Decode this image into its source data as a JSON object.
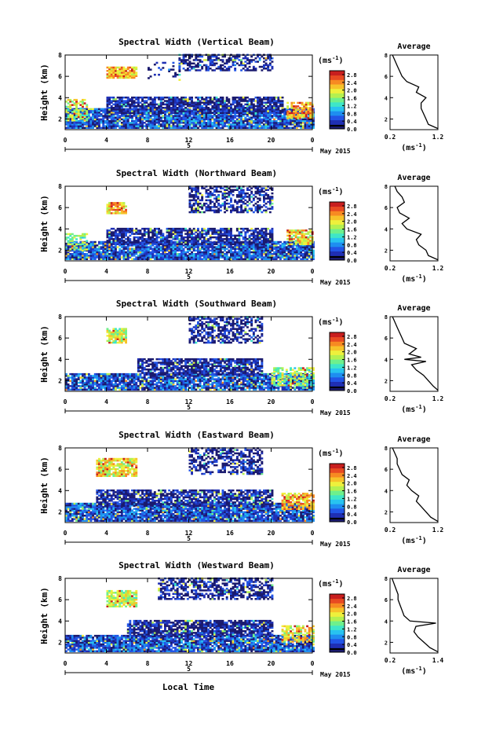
{
  "figure": {
    "month_label": "May 2015",
    "day_label": "5",
    "xlabel": "Local Time",
    "ylabel": "Height (km)",
    "unit_label": "(ms",
    "unit_exp": "-1",
    "unit_close": ")",
    "avg_title": "Average"
  },
  "colors": {
    "scale": [
      "#1a1a6e",
      "#1f2fb4",
      "#2255e6",
      "#1e8ef0",
      "#28c3f0",
      "#3ee6c8",
      "#6ef08c",
      "#b4f050",
      "#eef03c",
      "#f7c22a",
      "#f78a22",
      "#e84a22",
      "#c81e1e"
    ],
    "missing": "#ffffff"
  },
  "chart_data": [
    {
      "type": "heatmap",
      "title": "Spectral Width (Vertical Beam)",
      "x_ticks": [
        "0",
        "4",
        "8",
        "12",
        "16",
        "20",
        "0"
      ],
      "xlim": [
        0,
        24
      ],
      "y_ticks": [
        "2",
        "4",
        "6",
        "8"
      ],
      "ylim": [
        1,
        8
      ],
      "colorbar_ticks": [
        "0.0",
        "0.4",
        "0.8",
        "1.2",
        "1.6",
        "2.0",
        "2.4",
        "2.8"
      ],
      "colorbar_range": [
        0,
        3.0
      ],
      "regions": [
        {
          "t0": 0,
          "t1": 24,
          "h0": 1.1,
          "h1": 2.9,
          "value": 0.5,
          "density": 0.92
        },
        {
          "t0": 4,
          "t1": 21,
          "h0": 2.5,
          "h1": 4.0,
          "value": 0.2,
          "density": 0.82
        },
        {
          "t0": 4,
          "t1": 7,
          "h0": 5.8,
          "h1": 6.9,
          "value": 2.2,
          "density": 0.9
        },
        {
          "t0": 11,
          "t1": 20,
          "h0": 6.5,
          "h1": 8.0,
          "value": 0.2,
          "density": 0.55
        },
        {
          "t0": 8,
          "t1": 11,
          "h0": 5.6,
          "h1": 7.3,
          "value": 0.2,
          "density": 0.18
        },
        {
          "t0": 21.5,
          "t1": 24,
          "h0": 2.0,
          "h1": 3.6,
          "value": 2.2,
          "density": 0.8
        },
        {
          "t0": 0,
          "t1": 2,
          "h0": 1.8,
          "h1": 3.8,
          "value": 1.8,
          "density": 0.6
        }
      ],
      "avg_profile": {
        "xticks": [
          "0.2",
          "1.2"
        ],
        "xlim": [
          0.2,
          1.2
        ],
        "yticks": [
          "2",
          "4",
          "6",
          "8"
        ],
        "ylim": [
          1,
          8
        ],
        "h": [
          1.1,
          1.5,
          2.0,
          2.5,
          3.0,
          3.5,
          4.0,
          4.5,
          5.0,
          5.5,
          6.0,
          6.5,
          7.0,
          7.5,
          8.0
        ],
        "w": [
          1.2,
          1.0,
          0.95,
          0.9,
          0.85,
          0.85,
          0.95,
          0.75,
          0.8,
          0.55,
          0.45,
          0.4,
          0.35,
          0.3,
          0.25
        ]
      }
    },
    {
      "type": "heatmap",
      "title": "Spectral Width (Northward Beam)",
      "x_ticks": [
        "0",
        "4",
        "8",
        "12",
        "16",
        "20",
        "0"
      ],
      "xlim": [
        0,
        24
      ],
      "y_ticks": [
        "2",
        "4",
        "6",
        "8"
      ],
      "ylim": [
        1,
        8
      ],
      "colorbar_ticks": [
        "0.0",
        "0.4",
        "0.8",
        "1.2",
        "1.6",
        "2.0",
        "2.4",
        "2.8"
      ],
      "colorbar_range": [
        0,
        3.0
      ],
      "regions": [
        {
          "t0": 0,
          "t1": 24,
          "h0": 1.1,
          "h1": 2.8,
          "value": 0.5,
          "density": 0.9
        },
        {
          "t0": 4,
          "t1": 20,
          "h0": 2.5,
          "h1": 4.0,
          "value": 0.2,
          "density": 0.78
        },
        {
          "t0": 4,
          "t1": 6,
          "h0": 5.4,
          "h1": 6.5,
          "value": 2.2,
          "density": 0.85
        },
        {
          "t0": 12,
          "t1": 20,
          "h0": 5.5,
          "h1": 8.0,
          "value": 0.2,
          "density": 0.55
        },
        {
          "t0": 21.5,
          "t1": 24,
          "h0": 2.5,
          "h1": 3.8,
          "value": 2.0,
          "density": 0.7
        },
        {
          "t0": 0,
          "t1": 2,
          "h0": 2.0,
          "h1": 3.5,
          "value": 1.6,
          "density": 0.5
        }
      ],
      "avg_profile": {
        "xticks": [
          "0.2",
          "1.2"
        ],
        "xlim": [
          0.2,
          1.2
        ],
        "yticks": [
          "2",
          "4",
          "6",
          "8"
        ],
        "ylim": [
          1,
          8
        ],
        "h": [
          1.1,
          1.5,
          2.0,
          2.5,
          3.0,
          3.5,
          4.0,
          4.5,
          5.0,
          5.5,
          6.0,
          6.5,
          7.0,
          7.5,
          8.0
        ],
        "w": [
          1.2,
          1.0,
          0.95,
          0.8,
          0.75,
          0.85,
          0.55,
          0.45,
          0.6,
          0.4,
          0.35,
          0.5,
          0.45,
          0.35,
          0.3
        ]
      }
    },
    {
      "type": "heatmap",
      "title": "Spectral Width (Southward Beam)",
      "x_ticks": [
        "0",
        "4",
        "8",
        "12",
        "16",
        "20",
        "0"
      ],
      "xlim": [
        0,
        24
      ],
      "y_ticks": [
        "2",
        "4",
        "6",
        "8"
      ],
      "ylim": [
        1,
        8
      ],
      "colorbar_ticks": [
        "0.0",
        "0.4",
        "0.8",
        "1.2",
        "1.6",
        "2.0",
        "2.4",
        "2.8"
      ],
      "colorbar_range": [
        0,
        3.0
      ],
      "regions": [
        {
          "t0": 0,
          "t1": 24,
          "h0": 1.1,
          "h1": 2.6,
          "value": 0.5,
          "density": 0.88
        },
        {
          "t0": 7,
          "t1": 19,
          "h0": 2.5,
          "h1": 4.0,
          "value": 0.2,
          "density": 0.8
        },
        {
          "t0": 4,
          "t1": 6,
          "h0": 5.5,
          "h1": 6.8,
          "value": 1.8,
          "density": 0.85
        },
        {
          "t0": 12,
          "t1": 19,
          "h0": 5.5,
          "h1": 8.0,
          "value": 0.2,
          "density": 0.55
        },
        {
          "t0": 20,
          "t1": 24,
          "h0": 1.5,
          "h1": 3.2,
          "value": 1.6,
          "density": 0.65
        }
      ],
      "avg_profile": {
        "xticks": [
          "0.2",
          "1.2"
        ],
        "xlim": [
          0.2,
          1.2
        ],
        "yticks": [
          "2",
          "4",
          "6",
          "8"
        ],
        "ylim": [
          1,
          8
        ],
        "h": [
          1.1,
          1.5,
          2.0,
          2.5,
          3.0,
          3.5,
          3.8,
          4.0,
          4.2,
          4.5,
          5.0,
          5.5,
          6.0,
          6.5,
          7.0,
          7.5,
          8.0
        ],
        "w": [
          1.2,
          1.1,
          1.0,
          0.9,
          0.75,
          0.65,
          0.95,
          0.5,
          0.85,
          0.6,
          0.75,
          0.5,
          0.45,
          0.4,
          0.35,
          0.3,
          0.25
        ]
      }
    },
    {
      "type": "heatmap",
      "title": "Spectral Width (Eastward Beam)",
      "x_ticks": [
        "0",
        "4",
        "8",
        "12",
        "16",
        "20",
        "0"
      ],
      "xlim": [
        0,
        24
      ],
      "y_ticks": [
        "2",
        "4",
        "6",
        "8"
      ],
      "ylim": [
        1,
        8
      ],
      "colorbar_ticks": [
        "0.0",
        "0.4",
        "0.8",
        "1.2",
        "1.6",
        "2.0",
        "2.4",
        "2.8"
      ],
      "colorbar_range": [
        0,
        3.0
      ],
      "regions": [
        {
          "t0": 0,
          "t1": 24,
          "h0": 1.1,
          "h1": 2.8,
          "value": 0.5,
          "density": 0.9
        },
        {
          "t0": 3,
          "t1": 20,
          "h0": 2.5,
          "h1": 4.0,
          "value": 0.2,
          "density": 0.78
        },
        {
          "t0": 3,
          "t1": 7,
          "h0": 5.3,
          "h1": 7.0,
          "value": 2.0,
          "density": 0.85
        },
        {
          "t0": 12,
          "t1": 19,
          "h0": 5.5,
          "h1": 8.0,
          "value": 0.2,
          "density": 0.55
        },
        {
          "t0": 21,
          "t1": 24,
          "h0": 2.2,
          "h1": 3.8,
          "value": 2.2,
          "density": 0.75
        }
      ],
      "avg_profile": {
        "xticks": [
          "0.2",
          "1.2"
        ],
        "xlim": [
          0.2,
          1.2
        ],
        "yticks": [
          "2",
          "4",
          "6",
          "8"
        ],
        "ylim": [
          1,
          8
        ],
        "h": [
          1.1,
          1.5,
          2.0,
          2.5,
          3.0,
          3.5,
          4.0,
          4.5,
          5.0,
          5.5,
          6.0,
          6.5,
          7.0,
          7.5,
          8.0
        ],
        "w": [
          1.2,
          1.05,
          0.95,
          0.85,
          0.75,
          0.8,
          0.65,
          0.55,
          0.6,
          0.45,
          0.4,
          0.35,
          0.35,
          0.3,
          0.25
        ]
      }
    },
    {
      "type": "heatmap",
      "title": "Spectral Width (Westward Beam)",
      "x_ticks": [
        "0",
        "4",
        "8",
        "12",
        "16",
        "20",
        "0"
      ],
      "xlim": [
        0,
        24
      ],
      "y_ticks": [
        "2",
        "4",
        "6",
        "8"
      ],
      "ylim": [
        1,
        8
      ],
      "colorbar_ticks": [
        "0.0",
        "0.4",
        "0.8",
        "1.2",
        "1.6",
        "2.0",
        "2.4",
        "2.8"
      ],
      "colorbar_range": [
        0,
        3.0
      ],
      "regions": [
        {
          "t0": 0,
          "t1": 24,
          "h0": 1.1,
          "h1": 2.6,
          "value": 0.5,
          "density": 0.88
        },
        {
          "t0": 6,
          "t1": 20,
          "h0": 2.5,
          "h1": 4.0,
          "value": 0.2,
          "density": 0.8
        },
        {
          "t0": 4,
          "t1": 7,
          "h0": 5.3,
          "h1": 6.8,
          "value": 1.8,
          "density": 0.85
        },
        {
          "t0": 9,
          "t1": 20,
          "h0": 6.0,
          "h1": 8.0,
          "value": 0.2,
          "density": 0.6
        },
        {
          "t0": 21,
          "t1": 24,
          "h0": 2.0,
          "h1": 3.5,
          "value": 2.0,
          "density": 0.7
        }
      ],
      "avg_profile": {
        "xticks": [
          "0.2",
          "1.4"
        ],
        "xlim": [
          0.2,
          1.4
        ],
        "yticks": [
          "2",
          "4",
          "6",
          "8"
        ],
        "ylim": [
          1,
          8
        ],
        "h": [
          1.1,
          1.5,
          2.0,
          2.5,
          3.0,
          3.5,
          3.8,
          4.0,
          4.5,
          5.0,
          5.5,
          6.0,
          6.5,
          7.0,
          7.5,
          8.0
        ],
        "w": [
          1.4,
          1.2,
          1.05,
          0.9,
          0.8,
          0.85,
          1.35,
          0.7,
          0.55,
          0.5,
          0.45,
          0.4,
          0.4,
          0.35,
          0.3,
          0.25
        ]
      }
    }
  ]
}
